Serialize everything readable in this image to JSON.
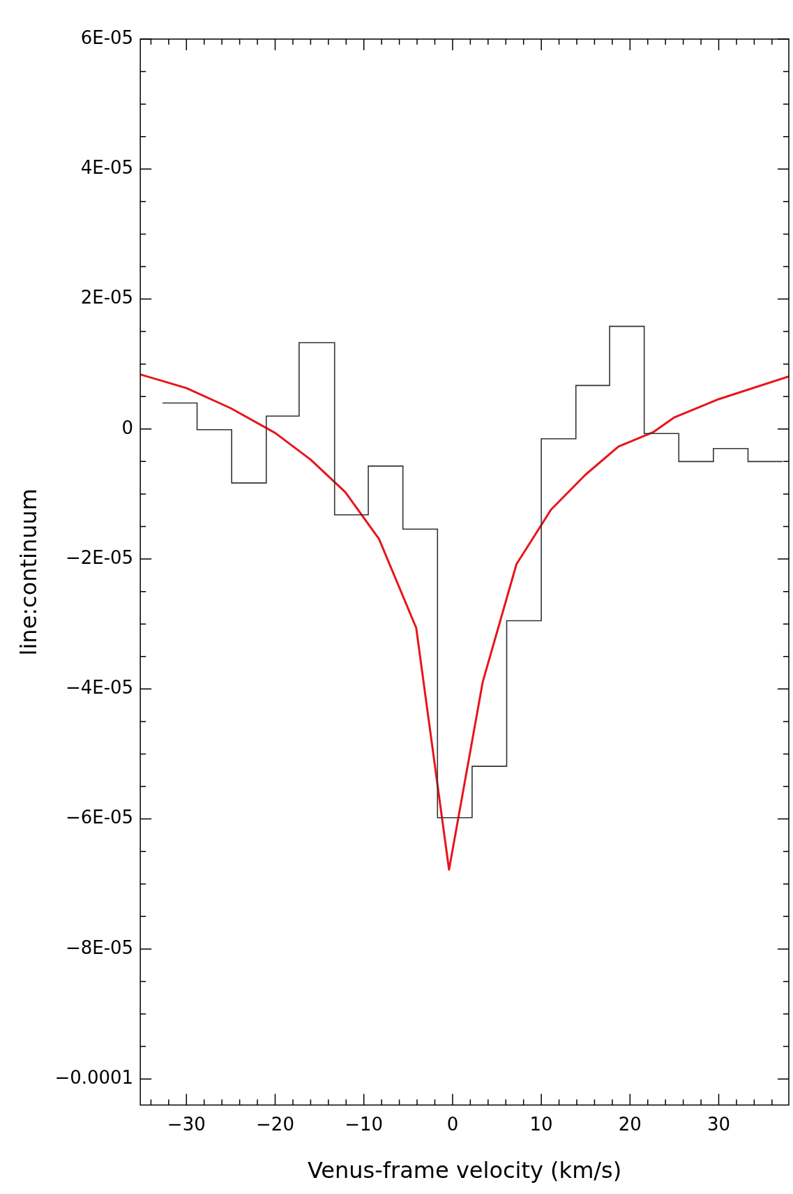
{
  "chart_data": {
    "type": "histogram",
    "xlabel": "Venus-frame velocity (km/s)",
    "ylabel": "line:continuum",
    "xlim": [
      -35.2,
      37.9
    ],
    "ylim": [
      -0.000104,
      6e-05
    ],
    "xticks": [
      {
        "value": -34,
        "label": null
      },
      {
        "value": -32,
        "label": null
      },
      {
        "value": -30,
        "label": "−30"
      },
      {
        "value": -28,
        "label": null
      },
      {
        "value": -26,
        "label": null
      },
      {
        "value": -24,
        "label": null
      },
      {
        "value": -22,
        "label": null
      },
      {
        "value": -20,
        "label": "−20"
      },
      {
        "value": -18,
        "label": null
      },
      {
        "value": -16,
        "label": null
      },
      {
        "value": -14,
        "label": null
      },
      {
        "value": -12,
        "label": null
      },
      {
        "value": -10,
        "label": "−10"
      },
      {
        "value": -8,
        "label": null
      },
      {
        "value": -6,
        "label": null
      },
      {
        "value": -4,
        "label": null
      },
      {
        "value": -2,
        "label": null
      },
      0,
      {
        "value": 2,
        "label": null
      },
      {
        "value": 4,
        "label": null
      },
      {
        "value": 6,
        "label": null
      },
      {
        "value": 8,
        "label": null
      },
      10,
      {
        "value": 12,
        "label": null
      },
      {
        "value": 14,
        "label": null
      },
      {
        "value": 16,
        "label": null
      },
      {
        "value": 18,
        "label": null
      },
      20,
      {
        "value": 22,
        "label": null
      },
      {
        "value": 24,
        "label": null
      },
      {
        "value": 26,
        "label": null
      },
      {
        "value": 28,
        "label": null
      },
      30,
      {
        "value": 32,
        "label": null
      },
      {
        "value": 34,
        "label": null
      },
      {
        "value": 36,
        "label": null
      }
    ],
    "yticks": [
      {
        "value": -0.0001,
        "label": "−0.0001"
      },
      {
        "value": -9.5e-05,
        "label": null
      },
      {
        "value": -9e-05,
        "label": null
      },
      {
        "value": -8.5e-05,
        "label": null
      },
      {
        "value": -8e-05,
        "label": "−8E-05"
      },
      {
        "value": -7.5e-05,
        "label": null
      },
      {
        "value": -7e-05,
        "label": null
      },
      {
        "value": -6.5e-05,
        "label": null
      },
      {
        "value": -6e-05,
        "label": "−6E-05"
      },
      {
        "value": -5.5e-05,
        "label": null
      },
      {
        "value": -5e-05,
        "label": null
      },
      {
        "value": -4.5e-05,
        "label": null
      },
      {
        "value": -4e-05,
        "label": "−4E-05"
      },
      {
        "value": -3.5e-05,
        "label": null
      },
      {
        "value": -3e-05,
        "label": null
      },
      {
        "value": -2.5e-05,
        "label": null
      },
      {
        "value": -2e-05,
        "label": "−2E-05"
      },
      {
        "value": -1.5e-05,
        "label": null
      },
      {
        "value": -1e-05,
        "label": null
      },
      {
        "value": -5e-06,
        "label": null
      },
      0,
      {
        "value": 5e-06,
        "label": null
      },
      {
        "value": 1e-05,
        "label": null
      },
      {
        "value": 1.5e-05,
        "label": null
      },
      {
        "value": 2e-05,
        "label": "2E-05"
      },
      {
        "value": 2.5e-05,
        "label": null
      },
      {
        "value": 3e-05,
        "label": null
      },
      {
        "value": 3.5e-05,
        "label": null
      },
      {
        "value": 4e-05,
        "label": "4E-05"
      },
      {
        "value": 4.5e-05,
        "label": null
      },
      {
        "value": 5e-05,
        "label": null
      },
      {
        "value": 5.5e-05,
        "label": null
      },
      {
        "value": 6e-05,
        "label": "6E-05"
      }
    ],
    "grid": false,
    "legend": false,
    "series": [
      {
        "color": "#333333",
        "bins": [
          -32.7,
          -28.8,
          -24.9,
          -21.0,
          -17.3,
          -13.3,
          -9.5,
          -5.6,
          -1.7,
          2.2,
          6.1,
          10.0,
          13.9,
          17.7,
          21.6,
          25.5,
          29.4,
          33.3,
          37.2
        ],
        "values": [
          4e-06,
          -1e-07,
          -8.3e-06,
          2e-06,
          1.33e-05,
          -1.32e-05,
          -5.7e-06,
          -1.54e-05,
          -5.98e-05,
          -5.19e-05,
          -2.95e-05,
          -1.5e-06,
          6.7e-06,
          1.58e-05,
          -7e-07,
          -5e-06,
          -3e-06,
          -5e-06
        ]
      },
      {
        "type": "line",
        "color": "#e8141c",
        "x": [
          -35.2,
          -30,
          -25,
          -20,
          -16.0,
          -12.1,
          -8.3,
          -4.1,
          -0.4,
          3.4,
          7.2,
          11.1,
          15.0,
          18.7,
          22.6,
          25,
          30,
          37.9
        ],
        "values": [
          8.4e-06,
          6.3e-06,
          3.2e-06,
          -6e-07,
          -4.7e-06,
          -9.7e-06,
          -1.69e-05,
          -3.06e-05,
          -6.78e-05,
          -3.89e-05,
          -2.08e-05,
          -1.24e-05,
          -7e-06,
          -2.7e-06,
          -5e-07,
          1.8e-06,
          4.6e-06,
          8.1e-06
        ]
      }
    ]
  }
}
